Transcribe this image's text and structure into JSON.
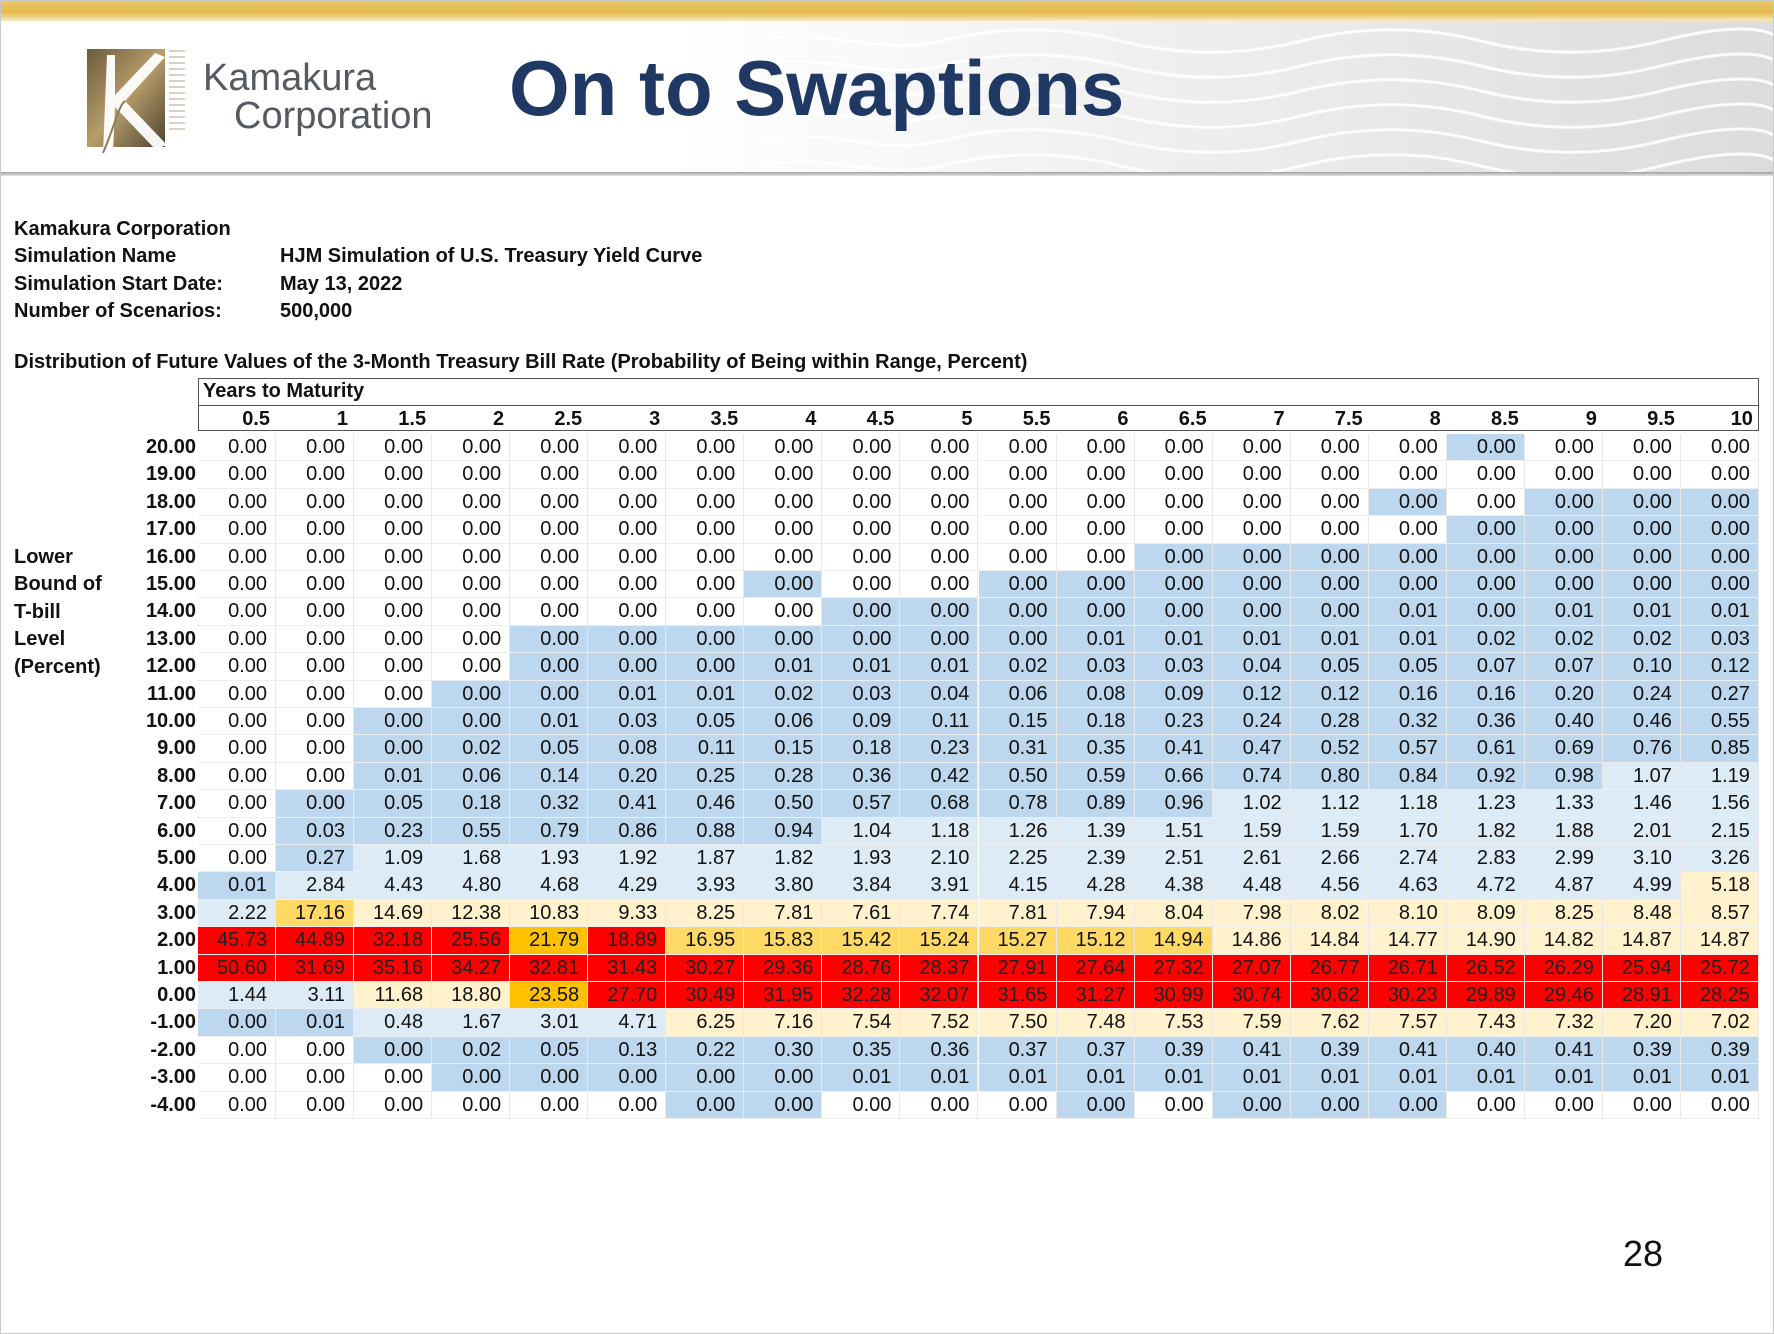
{
  "slide": {
    "title": "On to Swaptions",
    "page_number": "28",
    "logo": {
      "line1": "Kamakura",
      "line2": "Corporation"
    }
  },
  "meta": [
    {
      "key": "Kamakura Corporation",
      "value": ""
    },
    {
      "key": "Simulation Name",
      "value": "HJM Simulation of U.S. Treasury Yield Curve"
    },
    {
      "key": "Simulation Start Date:",
      "value": "May 13, 2022"
    },
    {
      "key": "Number of Scenarios:",
      "value": "500,000"
    }
  ],
  "table": {
    "caption": "Distribution of Future Values of the 3-Month Treasury Bill Rate (Probability of Being within Range, Percent)",
    "column_group_label": "Years to Maturity",
    "row_axis_label": [
      "Lower",
      "Bound of",
      "T-bill",
      "Level",
      "(Percent)"
    ],
    "columns": [
      "0.5",
      "1",
      "1.5",
      "2",
      "2.5",
      "3",
      "3.5",
      "4",
      "4.5",
      "5",
      "5.5",
      "6",
      "6.5",
      "7",
      "7.5",
      "8",
      "8.5",
      "9",
      "9.5",
      "10"
    ],
    "rows": [
      {
        "label": "20.00",
        "cells": [
          "0.00",
          "0.00",
          "0.00",
          "0.00",
          "0.00",
          "0.00",
          "0.00",
          "0.00",
          "0.00",
          "0.00",
          "0.00",
          "0.00",
          "0.00",
          "0.00",
          "0.00",
          "0.00",
          "0.00",
          "0.00",
          "0.00",
          "0.00"
        ]
      },
      {
        "label": "19.00",
        "cells": [
          "0.00",
          "0.00",
          "0.00",
          "0.00",
          "0.00",
          "0.00",
          "0.00",
          "0.00",
          "0.00",
          "0.00",
          "0.00",
          "0.00",
          "0.00",
          "0.00",
          "0.00",
          "0.00",
          "0.00",
          "0.00",
          "0.00",
          "0.00"
        ]
      },
      {
        "label": "18.00",
        "cells": [
          "0.00",
          "0.00",
          "0.00",
          "0.00",
          "0.00",
          "0.00",
          "0.00",
          "0.00",
          "0.00",
          "0.00",
          "0.00",
          "0.00",
          "0.00",
          "0.00",
          "0.00",
          "0.00",
          "0.00",
          "0.00",
          "0.00",
          "0.00"
        ]
      },
      {
        "label": "17.00",
        "cells": [
          "0.00",
          "0.00",
          "0.00",
          "0.00",
          "0.00",
          "0.00",
          "0.00",
          "0.00",
          "0.00",
          "0.00",
          "0.00",
          "0.00",
          "0.00",
          "0.00",
          "0.00",
          "0.00",
          "0.00",
          "0.00",
          "0.00",
          "0.00"
        ]
      },
      {
        "label": "16.00",
        "cells": [
          "0.00",
          "0.00",
          "0.00",
          "0.00",
          "0.00",
          "0.00",
          "0.00",
          "0.00",
          "0.00",
          "0.00",
          "0.00",
          "0.00",
          "0.00",
          "0.00",
          "0.00",
          "0.00",
          "0.00",
          "0.00",
          "0.00",
          "0.00"
        ]
      },
      {
        "label": "15.00",
        "cells": [
          "0.00",
          "0.00",
          "0.00",
          "0.00",
          "0.00",
          "0.00",
          "0.00",
          "0.00",
          "0.00",
          "0.00",
          "0.00",
          "0.00",
          "0.00",
          "0.00",
          "0.00",
          "0.00",
          "0.00",
          "0.00",
          "0.00",
          "0.00"
        ]
      },
      {
        "label": "14.00",
        "cells": [
          "0.00",
          "0.00",
          "0.00",
          "0.00",
          "0.00",
          "0.00",
          "0.00",
          "0.00",
          "0.00",
          "0.00",
          "0.00",
          "0.00",
          "0.00",
          "0.00",
          "0.00",
          "0.01",
          "0.00",
          "0.01",
          "0.01",
          "0.01"
        ]
      },
      {
        "label": "13.00",
        "cells": [
          "0.00",
          "0.00",
          "0.00",
          "0.00",
          "0.00",
          "0.00",
          "0.00",
          "0.00",
          "0.00",
          "0.00",
          "0.00",
          "0.01",
          "0.01",
          "0.01",
          "0.01",
          "0.01",
          "0.02",
          "0.02",
          "0.02",
          "0.03"
        ]
      },
      {
        "label": "12.00",
        "cells": [
          "0.00",
          "0.00",
          "0.00",
          "0.00",
          "0.00",
          "0.00",
          "0.00",
          "0.01",
          "0.01",
          "0.01",
          "0.02",
          "0.03",
          "0.03",
          "0.04",
          "0.05",
          "0.05",
          "0.07",
          "0.07",
          "0.10",
          "0.12"
        ]
      },
      {
        "label": "11.00",
        "cells": [
          "0.00",
          "0.00",
          "0.00",
          "0.00",
          "0.00",
          "0.01",
          "0.01",
          "0.02",
          "0.03",
          "0.04",
          "0.06",
          "0.08",
          "0.09",
          "0.12",
          "0.12",
          "0.16",
          "0.16",
          "0.20",
          "0.24",
          "0.27"
        ]
      },
      {
        "label": "10.00",
        "cells": [
          "0.00",
          "0.00",
          "0.00",
          "0.00",
          "0.01",
          "0.03",
          "0.05",
          "0.06",
          "0.09",
          "0.11",
          "0.15",
          "0.18",
          "0.23",
          "0.24",
          "0.28",
          "0.32",
          "0.36",
          "0.40",
          "0.46",
          "0.55"
        ]
      },
      {
        "label": "9.00",
        "cells": [
          "0.00",
          "0.00",
          "0.00",
          "0.02",
          "0.05",
          "0.08",
          "0.11",
          "0.15",
          "0.18",
          "0.23",
          "0.31",
          "0.35",
          "0.41",
          "0.47",
          "0.52",
          "0.57",
          "0.61",
          "0.69",
          "0.76",
          "0.85"
        ]
      },
      {
        "label": "8.00",
        "cells": [
          "0.00",
          "0.00",
          "0.01",
          "0.06",
          "0.14",
          "0.20",
          "0.25",
          "0.28",
          "0.36",
          "0.42",
          "0.50",
          "0.59",
          "0.66",
          "0.74",
          "0.80",
          "0.84",
          "0.92",
          "0.98",
          "1.07",
          "1.19"
        ]
      },
      {
        "label": "7.00",
        "cells": [
          "0.00",
          "0.00",
          "0.05",
          "0.18",
          "0.32",
          "0.41",
          "0.46",
          "0.50",
          "0.57",
          "0.68",
          "0.78",
          "0.89",
          "0.96",
          "1.02",
          "1.12",
          "1.18",
          "1.23",
          "1.33",
          "1.46",
          "1.56"
        ]
      },
      {
        "label": "6.00",
        "cells": [
          "0.00",
          "0.03",
          "0.23",
          "0.55",
          "0.79",
          "0.86",
          "0.88",
          "0.94",
          "1.04",
          "1.18",
          "1.26",
          "1.39",
          "1.51",
          "1.59",
          "1.59",
          "1.70",
          "1.82",
          "1.88",
          "2.01",
          "2.15"
        ]
      },
      {
        "label": "5.00",
        "cells": [
          "0.00",
          "0.27",
          "1.09",
          "1.68",
          "1.93",
          "1.92",
          "1.87",
          "1.82",
          "1.93",
          "2.10",
          "2.25",
          "2.39",
          "2.51",
          "2.61",
          "2.66",
          "2.74",
          "2.83",
          "2.99",
          "3.10",
          "3.26"
        ]
      },
      {
        "label": "4.00",
        "cells": [
          "0.01",
          "2.84",
          "4.43",
          "4.80",
          "4.68",
          "4.29",
          "3.93",
          "3.80",
          "3.84",
          "3.91",
          "4.15",
          "4.28",
          "4.38",
          "4.48",
          "4.56",
          "4.63",
          "4.72",
          "4.87",
          "4.99",
          "5.18"
        ]
      },
      {
        "label": "3.00",
        "cells": [
          "2.22",
          "17.16",
          "14.69",
          "12.38",
          "10.83",
          "9.33",
          "8.25",
          "7.81",
          "7.61",
          "7.74",
          "7.81",
          "7.94",
          "8.04",
          "7.98",
          "8.02",
          "8.10",
          "8.09",
          "8.25",
          "8.48",
          "8.57"
        ]
      },
      {
        "label": "2.00",
        "cells": [
          "45.73",
          "44.89",
          "32.18",
          "25.56",
          "21.79",
          "18.89",
          "16.95",
          "15.83",
          "15.42",
          "15.24",
          "15.27",
          "15.12",
          "14.94",
          "14.86",
          "14.84",
          "14.77",
          "14.90",
          "14.82",
          "14.87",
          "14.87"
        ]
      },
      {
        "label": "1.00",
        "cells": [
          "50.60",
          "31.69",
          "35.16",
          "34.27",
          "32.81",
          "31.43",
          "30.27",
          "29.36",
          "28.76",
          "28.37",
          "27.91",
          "27.64",
          "27.32",
          "27.07",
          "26.77",
          "26.71",
          "26.52",
          "26.29",
          "25.94",
          "25.72"
        ]
      },
      {
        "label": "0.00",
        "cells": [
          "1.44",
          "3.11",
          "11.68",
          "18.80",
          "23.58",
          "27.70",
          "30.49",
          "31.95",
          "32.28",
          "32.07",
          "31.65",
          "31.27",
          "30.99",
          "30.74",
          "30.62",
          "30.23",
          "29.89",
          "29.46",
          "28.91",
          "28.25"
        ]
      },
      {
        "label": "-1.00",
        "cells": [
          "0.00",
          "0.01",
          "0.48",
          "1.67",
          "3.01",
          "4.71",
          "6.25",
          "7.16",
          "7.54",
          "7.52",
          "7.50",
          "7.48",
          "7.53",
          "7.59",
          "7.62",
          "7.57",
          "7.43",
          "7.32",
          "7.20",
          "7.02"
        ]
      },
      {
        "label": "-2.00",
        "cells": [
          "0.00",
          "0.00",
          "0.00",
          "0.02",
          "0.05",
          "0.13",
          "0.22",
          "0.30",
          "0.35",
          "0.36",
          "0.37",
          "0.37",
          "0.39",
          "0.41",
          "0.39",
          "0.41",
          "0.40",
          "0.41",
          "0.39",
          "0.39"
        ]
      },
      {
        "label": "-3.00",
        "cells": [
          "0.00",
          "0.00",
          "0.00",
          "0.00",
          "0.00",
          "0.00",
          "0.00",
          "0.00",
          "0.01",
          "0.01",
          "0.01",
          "0.01",
          "0.01",
          "0.01",
          "0.01",
          "0.01",
          "0.01",
          "0.01",
          "0.01",
          "0.01"
        ]
      },
      {
        "label": "-4.00",
        "cells": [
          "0.00",
          "0.00",
          "0.00",
          "0.00",
          "0.00",
          "0.00",
          "0.00",
          "0.00",
          "0.00",
          "0.00",
          "0.00",
          "0.00",
          "0.00",
          "0.00",
          "0.00",
          "0.00",
          "0.00",
          "0.00",
          "0.00",
          "0.00"
        ]
      }
    ],
    "cell_colors": {
      "W": "#ffffff",
      "B": "#bdd7ee",
      "L": "#ddebf7",
      "C": "#fff2cc",
      "Y": "#ffd966",
      "O": "#ffc000",
      "R": "#ff0000"
    },
    "color_grid": [
      "WWWWWWWWWWWWWWWWBWWW",
      "WWWWWWWWWWWWWWWWWWWW",
      "WWWWWWWWWWWWWWWBWBBB",
      "WWWWWWWWWWWWWWWWBBBB",
      "WWWWWWWWWWWWBBBBBBBB",
      "WWWWWWWBWWBBBBBBBBBB",
      "WWWWWWWWBBBBBBBBBBBB",
      "WWWWBBBBBBBBBBBBBBBB",
      "WWWWBBBBBBBBBBBBBBBB",
      "WWWBBBBBBBBBBBBBBBBB",
      "WWBBBBBBBBBBBBBBBBBB",
      "WWBBBBBBBBBBBBBBBBBB",
      "WWBBBBBBBBBBBBBBBBLL",
      "WBBBBBBBBBBBBLLLLLLL",
      "WBBBBBBBLLLLLLLLLLLL",
      "WBLLLLLLLLLLLLLLLLLL",
      "BLLLLLLLLLLLLLLLLLLC",
      "LYCCCCCCCCCCCCCCCCCC",
      "RRRRORYYYYYYYCCCCCCC",
      "RRRRRRRRRRRRRRRRRRRR",
      "LLCCORRRRRRRRRRRRRRR",
      "BBLLLLCCCCCCCCCCCCCC",
      "WWBBBBBBBBBBBBBBBBBB",
      "WWWBBBBBBBBBBBBBBBBB",
      "WWWWWWBBWWWBWBBBWWWW"
    ]
  }
}
